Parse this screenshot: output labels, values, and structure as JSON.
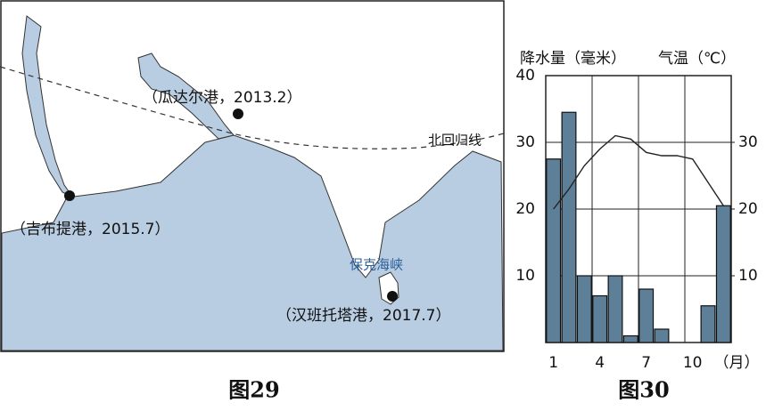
{
  "map": {
    "caption": "图29",
    "tropic_label": "北回归线",
    "strait_label": "保克海峡",
    "ports": [
      {
        "label": "（瓜达尔港，2013.2）"
      },
      {
        "label": "（吉布提港，2015.7）"
      },
      {
        "label": "（汉班托塔港，2017.7）"
      }
    ]
  },
  "chart_data": {
    "type": "bar",
    "caption": "图30",
    "y_label": "降水量（毫米）",
    "y2_label": "气温（℃）",
    "x_label": "（月）",
    "categories": [
      "1",
      null,
      null,
      "4",
      null,
      null,
      "7",
      null,
      null,
      "10",
      null,
      null
    ],
    "series": [
      {
        "type": "bar",
        "color": "#5d7f98",
        "values": [
          27.5,
          34.5,
          10,
          7,
          10,
          1,
          8,
          2,
          0,
          0,
          5.5,
          20.5
        ]
      },
      {
        "type": "line",
        "axis": "y2",
        "color": "#222222",
        "values": [
          20,
          23,
          26.5,
          29,
          31,
          30.5,
          28.5,
          28,
          28,
          27.5,
          24,
          20.5
        ]
      }
    ],
    "ylim": [
      0,
      40
    ],
    "yticks": [
      10,
      20,
      30,
      40
    ],
    "y2lim": [
      0,
      40
    ],
    "y2ticks": [
      10,
      20,
      30
    ],
    "grid": true
  }
}
